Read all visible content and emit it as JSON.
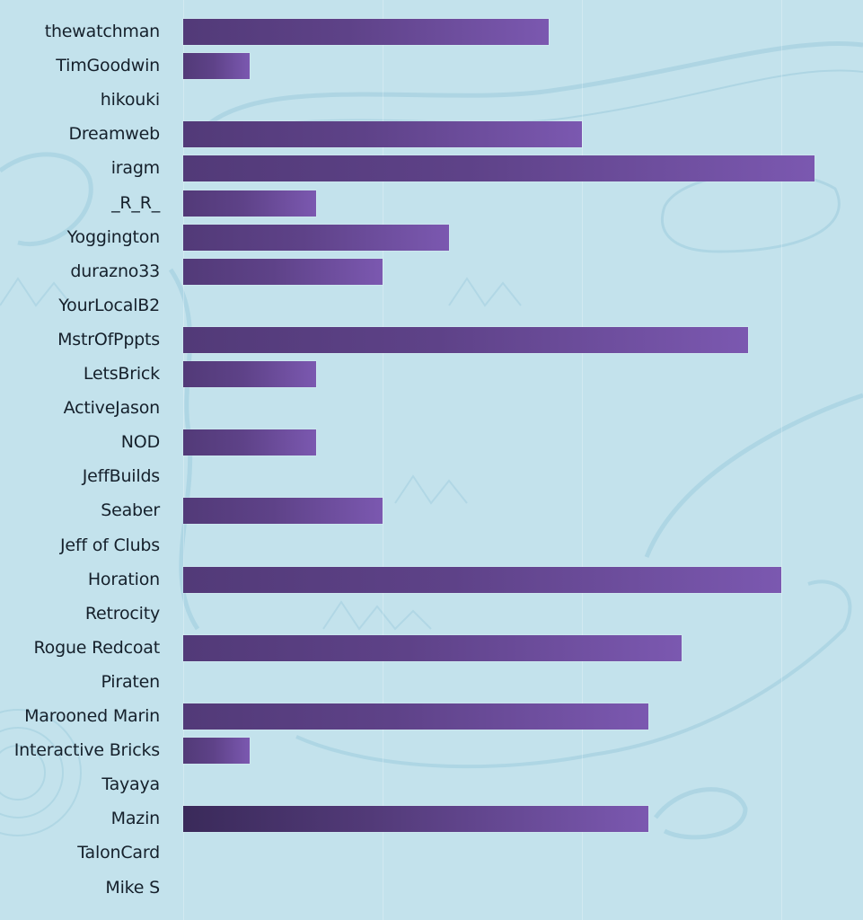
{
  "chart_data": {
    "type": "bar",
    "orientation": "horizontal",
    "title": "",
    "xlabel": "",
    "ylabel": "",
    "xlim": [
      0,
      19
    ],
    "grid": true,
    "legend": null,
    "categories": [
      "thewatchman",
      "TimGoodwin",
      "hikouki",
      "Dreamweb",
      "iragm",
      "_R_R_",
      "Yoggington",
      "durazno33",
      "YourLocalB2",
      "MstrOfPppts",
      "LetsBrick",
      "ActiveJason",
      "NOD",
      "JeffBuilds",
      "Seaber",
      "Jeff of Clubs",
      "Horation",
      "Retrocity",
      "Rogue Redcoat",
      "Piraten",
      "Marooned Marin",
      "Interactive Bricks",
      "Tayaya",
      "Mazin",
      "TalonCard",
      "Mike S"
    ],
    "values": [
      11,
      2,
      0,
      12,
      19,
      4,
      8,
      6,
      0,
      17,
      4,
      0,
      4,
      0,
      6,
      0,
      18,
      0,
      15,
      0,
      14,
      2,
      0,
      14,
      0,
      0
    ]
  },
  "colors": {
    "bar_start": "#523a78",
    "bar_end": "#7b58b0",
    "background": "#c3e2ec",
    "label": "#15202b"
  }
}
